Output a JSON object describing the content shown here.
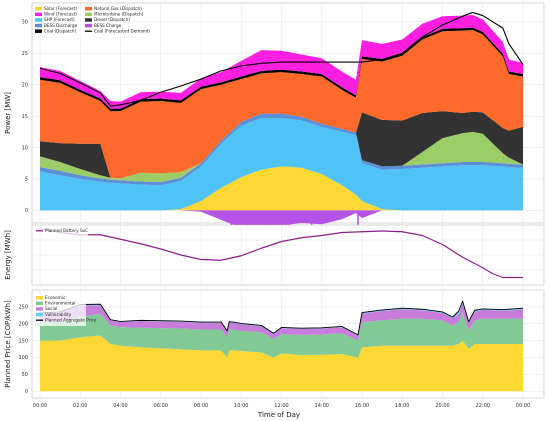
{
  "chart_data": [
    {
      "type": "area",
      "ylabel": "Power [MW]",
      "ylim": [
        -2,
        33
      ],
      "yticks": [
        0,
        5,
        10,
        15,
        20,
        25,
        30
      ],
      "grid": true,
      "legend_position": "top-left",
      "x_hours": [
        0,
        1,
        2,
        3,
        3.5,
        4,
        5,
        6,
        7,
        8,
        9,
        10,
        11,
        12,
        13,
        14,
        15,
        15.7,
        16,
        17,
        18,
        19,
        20,
        21,
        21.5,
        22,
        23,
        23.3,
        24
      ],
      "series": [
        {
          "name": "Solar (Forecast)",
          "color": "#FDD835",
          "values": [
            0,
            0,
            0,
            0,
            0,
            0,
            0,
            0,
            0.2,
            1.5,
            3.6,
            5.3,
            6.5,
            7.0,
            6.8,
            5.8,
            4.0,
            2.5,
            1.5,
            0.2,
            0,
            0,
            0,
            0,
            0,
            0,
            0,
            0,
            0
          ]
        },
        {
          "name": "SHP (Forecast)",
          "color": "#4FC3F7",
          "values": [
            6.2,
            5.6,
            5.0,
            4.6,
            4.4,
            4.3,
            4.1,
            4.0,
            4.5,
            5.5,
            7.0,
            8.2,
            8.2,
            7.7,
            7.5,
            7.5,
            8.5,
            9.5,
            6.0,
            6.3,
            6.6,
            6.8,
            7.0,
            7.2,
            7.2,
            7.2,
            7.0,
            6.9,
            6.8
          ]
        },
        {
          "name": "BESS Discharge",
          "color": "#5C8FD6",
          "values": [
            0.7,
            0.7,
            0.6,
            0.5,
            0.5,
            0.5,
            0.5,
            0.5,
            0.5,
            0.5,
            0.5,
            0.6,
            0.7,
            0.7,
            0.6,
            0.5,
            0.5,
            0.4,
            0.5,
            0.5,
            0.5,
            0.5,
            0.5,
            0.5,
            0.5,
            0.5,
            0.5,
            0.5,
            0.5
          ]
        },
        {
          "name": "Microturbine (Dispatch)",
          "color": "#9CCC65",
          "values": [
            1.7,
            1.4,
            1.0,
            0.5,
            0.3,
            0.3,
            1.4,
            1.4,
            0.9,
            0,
            0,
            0,
            0,
            0,
            0,
            0,
            0,
            0,
            0,
            0,
            0,
            2.0,
            4.0,
            4.6,
            4.8,
            4.5,
            1.6,
            1.0,
            0
          ]
        },
        {
          "name": "Diesel (Dispatch)",
          "color": "#333333",
          "values": [
            2.4,
            3.0,
            4.0,
            5.0,
            0,
            0,
            0,
            0,
            0,
            0,
            0,
            0,
            0,
            0,
            0,
            0,
            0,
            0,
            7.6,
            7.4,
            7.2,
            6.2,
            4.3,
            3.2,
            3.2,
            3.4,
            4.0,
            4.3,
            6.0
          ]
        },
        {
          "name": "Natural Gas (Dispatch)",
          "color": "#FF6A2B",
          "values": [
            9.8,
            9.6,
            8.2,
            6.8,
            10.6,
            10.7,
            11.3,
            11.5,
            11.0,
            11.8,
            8.9,
            6.8,
            6.4,
            6.6,
            6.8,
            7.5,
            6.2,
            5.5,
            8.5,
            9.3,
            10.3,
            11.7,
            12.7,
            13.1,
            13.0,
            12.4,
            11.4,
            9.0,
            8.0
          ]
        },
        {
          "name": "Coal (Dispatch)",
          "color": "#000000",
          "values": [
            0.4,
            0.4,
            0.4,
            0.4,
            0.4,
            0.4,
            0.4,
            0.4,
            0.4,
            0.4,
            0.4,
            0.4,
            0.4,
            0.4,
            0.4,
            0.4,
            0.4,
            0.4,
            0.4,
            0.4,
            0.4,
            0.4,
            0.4,
            0.4,
            0.4,
            0.4,
            0.4,
            0.4,
            0.4
          ]
        },
        {
          "name": "Wind (Forecast)",
          "color": "#FF1FE0",
          "values": [
            1.6,
            1.5,
            1.4,
            1.2,
            1.2,
            1.1,
            1.1,
            1.1,
            1.2,
            1.3,
            1.6,
            2.5,
            3.3,
            3.0,
            2.7,
            2.5,
            2.5,
            2.5,
            2.6,
            2.4,
            2.2,
            2.1,
            2.0,
            2.0,
            2.0,
            2.0,
            1.9,
            1.9,
            1.8
          ]
        }
      ],
      "bess_charge": {
        "name": "BESS Charge",
        "color": "#B552E8",
        "values": [
          0,
          0,
          0,
          0,
          0,
          0,
          0,
          0,
          0,
          0.2,
          1.5,
          2.8,
          3.2,
          2.4,
          2.0,
          2.2,
          1.4,
          0.4,
          1.2,
          0,
          0,
          0,
          0,
          0,
          0,
          0,
          0,
          0,
          0
        ]
      },
      "bess_charge_spikes": {
        "hours": [
          9.5,
          10.2,
          11.3,
          12.4,
          13.5,
          15.8
        ],
        "values": [
          2.4,
          3.6,
          3.8,
          3.5,
          3.0,
          4.5
        ]
      },
      "demand": {
        "name": "Coal (Forecasted Demand)",
        "color": "#000000",
        "values": [
          22.6,
          21.8,
          20.3,
          18.7,
          16.6,
          16.8,
          17.5,
          18.8,
          19.8,
          20.9,
          22.2,
          23.0,
          23.4,
          23.6,
          23.6,
          23.6,
          23.6,
          23.6,
          23.6,
          24.0,
          25.0,
          27.6,
          29.5,
          30.9,
          31.5,
          31.0,
          29.0,
          26.5,
          23.2
        ]
      }
    },
    {
      "type": "line",
      "ylabel": "Energy [MWh]",
      "ylim": [
        0,
        8
      ],
      "x_hours": [
        0,
        1,
        2,
        3,
        4,
        5,
        6,
        7,
        8,
        9,
        10,
        11,
        12,
        13,
        14,
        15,
        16,
        17,
        18,
        19,
        20,
        21,
        22,
        22.5,
        23,
        24
      ],
      "series": [
        {
          "name": "Planned Battery SoC",
          "color": "#8E1E8A",
          "values": [
            7.5,
            7.0,
            6.7,
            6.7,
            6.1,
            5.5,
            4.8,
            4.0,
            3.4,
            3.3,
            3.9,
            4.9,
            5.8,
            6.3,
            6.6,
            7.0,
            7.1,
            7.2,
            7.1,
            6.6,
            5.4,
            3.7,
            2.3,
            1.5,
            1.0,
            1.0
          ]
        }
      ]
    },
    {
      "type": "area",
      "ylabel": "Planned Price [COP/kWh]",
      "ylim": [
        -20,
        300
      ],
      "yticks": [
        0,
        50,
        100,
        150,
        200,
        250
      ],
      "xlabel": "Time of Day",
      "x_tick_labels": [
        "00:00",
        "02:00",
        "04:00",
        "06:00",
        "08:00",
        "10:00",
        "12:00",
        "14:00",
        "16:00",
        "18:00",
        "20:00",
        "22:00",
        "00:00"
      ],
      "legend_position": "top-left",
      "x_hours": [
        0,
        1,
        2,
        3,
        3.5,
        4,
        5,
        6,
        7,
        8,
        9,
        9.3,
        9.4,
        9.6,
        10,
        11,
        11.6,
        12,
        13,
        14,
        15,
        15.8,
        16,
        17,
        18,
        19,
        20,
        20.5,
        20.8,
        21,
        21.3,
        21.6,
        22,
        23,
        24
      ],
      "series": [
        {
          "name": "Economic",
          "color": "#FDD835",
          "values": [
            150,
            150,
            160,
            165,
            140,
            135,
            130,
            127,
            124,
            121,
            121,
            100,
            122,
            121,
            119,
            115,
            100,
            112,
            107,
            108,
            110,
            100,
            130,
            135,
            135,
            135,
            135,
            135,
            140,
            150,
            125,
            140,
            140,
            140,
            140
          ]
        },
        {
          "name": "Environmental",
          "color": "#81C995",
          "values": [
            55,
            55,
            60,
            65,
            55,
            55,
            58,
            60,
            62,
            62,
            62,
            60,
            62,
            62,
            60,
            60,
            55,
            57,
            60,
            60,
            62,
            50,
            75,
            75,
            80,
            80,
            75,
            60,
            65,
            85,
            55,
            70,
            75,
            75,
            75
          ]
        },
        {
          "name": "Social",
          "color": "#C77DD9",
          "values": [
            25,
            28,
            35,
            25,
            15,
            15,
            20,
            20,
            20,
            20,
            20,
            17,
            20,
            20,
            20,
            18,
            15,
            18,
            18,
            18,
            18,
            15,
            25,
            28,
            28,
            25,
            22,
            22,
            24,
            28,
            22,
            26,
            26,
            24,
            28
          ]
        },
        {
          "name": "Vulnerability",
          "color": "#5CD3F2",
          "values": [
            2,
            2,
            2,
            3,
            2,
            2,
            2,
            2,
            2,
            2,
            2,
            2,
            2,
            2,
            2,
            2,
            2,
            2,
            2,
            2,
            2,
            2,
            3,
            3,
            3,
            3,
            3,
            3,
            8,
            4,
            4,
            4,
            3,
            3,
            3
          ]
        }
      ],
      "aggregate": {
        "name": "Planned Aggregate Price",
        "color": "#000000",
        "values": [
          232,
          235,
          257,
          258,
          212,
          207,
          210,
          209,
          208,
          205,
          205,
          179,
          206,
          205,
          201,
          195,
          172,
          189,
          187,
          188,
          192,
          167,
          233,
          241,
          246,
          243,
          235,
          220,
          237,
          267,
          206,
          240,
          244,
          242,
          246
        ]
      }
    }
  ]
}
